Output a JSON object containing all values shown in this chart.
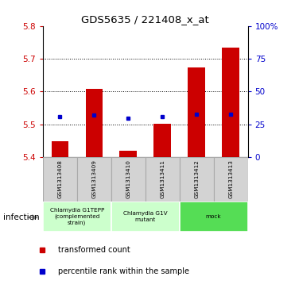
{
  "title": "GDS5635 / 221408_x_at",
  "samples": [
    "GSM1313408",
    "GSM1313409",
    "GSM1313410",
    "GSM1313411",
    "GSM1313412",
    "GSM1313413"
  ],
  "bar_bottoms": [
    5.4,
    5.4,
    5.4,
    5.4,
    5.4,
    5.4
  ],
  "bar_tops": [
    5.447,
    5.607,
    5.418,
    5.502,
    5.673,
    5.733
  ],
  "blue_dots": [
    5.523,
    5.527,
    5.518,
    5.524,
    5.53,
    5.531
  ],
  "ylim": [
    5.4,
    5.8
  ],
  "yticks_left": [
    5.4,
    5.5,
    5.6,
    5.7,
    5.8
  ],
  "yticks_right": [
    0,
    25,
    50,
    75,
    100
  ],
  "ytick_labels_right": [
    "0",
    "25",
    "50",
    "75",
    "100%"
  ],
  "gridlines": [
    5.5,
    5.6,
    5.7
  ],
  "bar_color": "#cc0000",
  "dot_color": "#0000cc",
  "groups": [
    {
      "label": "Chlamydia G1TEPP\n(complemented\nstrain)",
      "start": 0,
      "end": 2,
      "color": "#ccffcc"
    },
    {
      "label": "Chlamydia G1V\nmutant",
      "start": 2,
      "end": 4,
      "color": "#ccffcc"
    },
    {
      "label": "mock",
      "start": 4,
      "end": 6,
      "color": "#55dd55"
    }
  ],
  "factor_label": "infection",
  "legend_items": [
    "transformed count",
    "percentile rank within the sample"
  ],
  "tick_label_color_left": "#cc0000",
  "tick_label_color_right": "#0000cc",
  "bar_width": 0.5,
  "sample_box_color": "#d3d3d3",
  "sample_box_edge": "#aaaaaa"
}
